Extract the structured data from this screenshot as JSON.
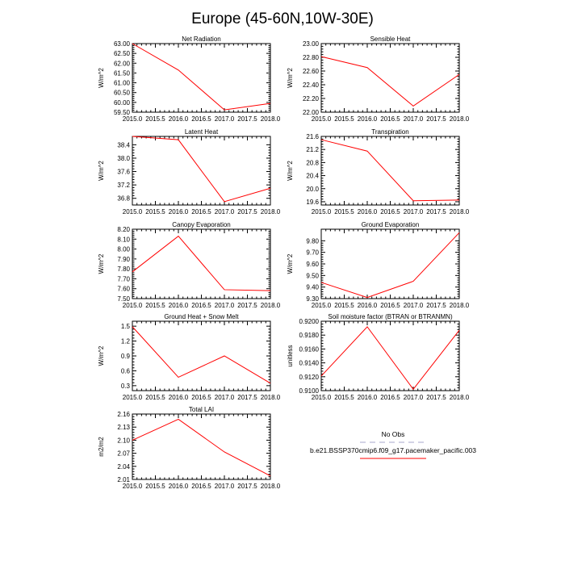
{
  "title": "Europe (45-60N,10W-30E)",
  "colors": {
    "model": "#ff0000",
    "obs": "#b9b9d8",
    "axis": "#000000"
  },
  "chart_data": [
    {
      "type": "line",
      "title": "Net Radiation",
      "ylabel": "W/m^2",
      "x": [
        2015.0,
        2016.0,
        2017.0,
        2018.0
      ],
      "series": [
        {
          "name": "b.e21.BSSP370cmip6.f09_g17.pacemaker_pacific.003",
          "values": [
            63.0,
            61.65,
            59.62,
            59.95
          ]
        }
      ],
      "xlim": [
        2015.0,
        2018.0
      ],
      "ylim": [
        59.5,
        63.0
      ],
      "xticks": [
        "2015.0",
        "2015.5",
        "2016.0",
        "2016.5",
        "2017.0",
        "2017.5",
        "2018.0"
      ],
      "yticks": [
        "59.50",
        "60.00",
        "60.50",
        "61.00",
        "61.50",
        "62.00",
        "62.50",
        "63.00"
      ]
    },
    {
      "type": "line",
      "title": "Sensible Heat",
      "ylabel": "W/m^2",
      "x": [
        2015.0,
        2016.0,
        2017.0,
        2018.0
      ],
      "series": [
        {
          "name": "b.e21.BSSP370cmip6.f09_g17.pacemaker_pacific.003",
          "values": [
            22.81,
            22.65,
            22.09,
            22.55
          ]
        }
      ],
      "xlim": [
        2015.0,
        2018.0
      ],
      "ylim": [
        22.0,
        23.0
      ],
      "xticks": [
        "2015.0",
        "2015.5",
        "2016.0",
        "2016.5",
        "2017.0",
        "2017.5",
        "2018.0"
      ],
      "yticks": [
        "22.00",
        "22.20",
        "22.40",
        "22.60",
        "22.80",
        "23.00"
      ]
    },
    {
      "type": "line",
      "title": "Latent Heat",
      "ylabel": "W/m^2",
      "x": [
        2015.0,
        2016.0,
        2017.0,
        2018.0
      ],
      "series": [
        {
          "name": "b.e21.BSSP370cmip6.f09_g17.pacemaker_pacific.003",
          "values": [
            38.65,
            38.55,
            36.7,
            37.1
          ]
        }
      ],
      "xlim": [
        2015.0,
        2018.0
      ],
      "ylim": [
        36.6,
        38.65
      ],
      "xticks": [
        "2015.0",
        "2015.5",
        "2016.0",
        "2016.5",
        "2017.0",
        "2017.5",
        "2018.0"
      ],
      "yticks": [
        "36.8",
        "37.2",
        "37.6",
        "38.0",
        "38.4"
      ]
    },
    {
      "type": "line",
      "title": "Transpiration",
      "ylabel": "W/m^2",
      "x": [
        2015.0,
        2016.0,
        2017.0,
        2018.0
      ],
      "series": [
        {
          "name": "b.e21.BSSP370cmip6.f09_g17.pacemaker_pacific.003",
          "values": [
            21.5,
            21.15,
            19.63,
            19.65
          ]
        }
      ],
      "xlim": [
        2015.0,
        2018.0
      ],
      "ylim": [
        19.5,
        21.6
      ],
      "xticks": [
        "2015.0",
        "2015.5",
        "2016.0",
        "2016.5",
        "2017.0",
        "2017.5",
        "2018.0"
      ],
      "yticks": [
        "19.6",
        "20.0",
        "20.4",
        "20.8",
        "21.2",
        "21.6"
      ]
    },
    {
      "type": "line",
      "title": "Canopy Evaporation",
      "ylabel": "W/m^2",
      "x": [
        2015.0,
        2016.0,
        2017.0,
        2018.0
      ],
      "series": [
        {
          "name": "b.e21.BSSP370cmip6.f09_g17.pacemaker_pacific.003",
          "values": [
            7.77,
            8.13,
            7.59,
            7.58
          ]
        }
      ],
      "xlim": [
        2015.0,
        2018.0
      ],
      "ylim": [
        7.5,
        8.2
      ],
      "xticks": [
        "2015.0",
        "2015.5",
        "2016.0",
        "2016.5",
        "2017.0",
        "2017.5",
        "2018.0"
      ],
      "yticks": [
        "7.50",
        "7.60",
        "7.70",
        "7.80",
        "7.90",
        "8.00",
        "8.10",
        "8.20"
      ]
    },
    {
      "type": "line",
      "title": "Ground Evaporation",
      "ylabel": "W/m^2",
      "x": [
        2015.0,
        2016.0,
        2017.0,
        2018.0
      ],
      "series": [
        {
          "name": "b.e21.BSSP370cmip6.f09_g17.pacemaker_pacific.003",
          "values": [
            9.44,
            9.31,
            9.45,
            9.87
          ]
        }
      ],
      "xlim": [
        2015.0,
        2018.0
      ],
      "ylim": [
        9.3,
        9.9
      ],
      "xticks": [
        "2015.0",
        "2015.5",
        "2016.0",
        "2016.5",
        "2017.0",
        "2017.5",
        "2018.0"
      ],
      "yticks": [
        "9.30",
        "9.40",
        "9.50",
        "9.60",
        "9.70",
        "9.80"
      ]
    },
    {
      "type": "line",
      "title": "Ground Heat + Snow Melt",
      "ylabel": "W/m^2",
      "x": [
        2015.0,
        2016.0,
        2017.0,
        2018.0
      ],
      "series": [
        {
          "name": "b.e21.BSSP370cmip6.f09_g17.pacemaker_pacific.003",
          "values": [
            1.49,
            0.47,
            0.9,
            0.35
          ]
        }
      ],
      "xlim": [
        2015.0,
        2018.0
      ],
      "ylim": [
        0.2,
        1.6
      ],
      "xticks": [
        "2015.0",
        "2015.5",
        "2016.0",
        "2016.5",
        "2017.0",
        "2017.5",
        "2018.0"
      ],
      "yticks": [
        "0.3",
        "0.6",
        "0.9",
        "1.2",
        "1.5"
      ]
    },
    {
      "type": "line",
      "title": "Soil moisture factor (BTRAN or BTRANMN)",
      "ylabel": "unitless",
      "x": [
        2015.0,
        2016.0,
        2017.0,
        2018.0
      ],
      "series": [
        {
          "name": "b.e21.BSSP370cmip6.f09_g17.pacemaker_pacific.003",
          "values": [
            0.9121,
            0.9192,
            0.9102,
            0.9187
          ]
        }
      ],
      "xlim": [
        2015.0,
        2018.0
      ],
      "ylim": [
        0.91,
        0.92
      ],
      "xticks": [
        "2015.0",
        "2015.5",
        "2016.0",
        "2016.5",
        "2017.0",
        "2017.5",
        "2018.0"
      ],
      "yticks": [
        "0.9100",
        "0.9120",
        "0.9140",
        "0.9160",
        "0.9180",
        "0.9200"
      ]
    },
    {
      "type": "line",
      "title": "Total LAI",
      "ylabel": "m2/m2",
      "x": [
        2015.0,
        2016.0,
        2017.0,
        2018.0
      ],
      "series": [
        {
          "name": "b.e21.BSSP370cmip6.f09_g17.pacemaker_pacific.003",
          "values": [
            2.1,
            2.148,
            2.073,
            2.018
          ]
        }
      ],
      "xlim": [
        2015.0,
        2018.0
      ],
      "ylim": [
        2.01,
        2.16
      ],
      "xticks": [
        "2015.0",
        "2015.5",
        "2016.0",
        "2016.5",
        "2017.0",
        "2017.5",
        "2018.0"
      ],
      "yticks": [
        "2.01",
        "2.04",
        "2.07",
        "2.10",
        "2.13",
        "2.16"
      ]
    }
  ],
  "legend": {
    "items": [
      {
        "label": "No Obs",
        "style": "dashed",
        "color": "#b9b9d8"
      },
      {
        "label": "b.e21.BSSP370cmip6.f09_g17.pacemaker_pacific.003",
        "style": "solid",
        "color": "#ff0000"
      }
    ]
  }
}
